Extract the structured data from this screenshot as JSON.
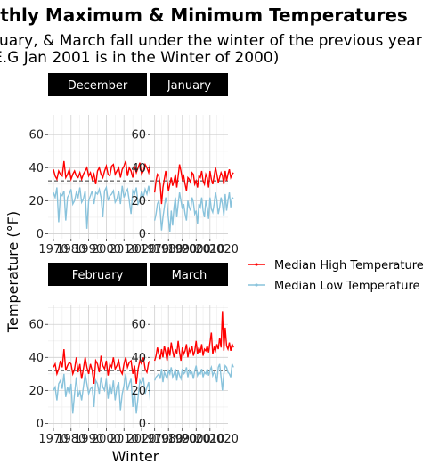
{
  "chart_data": {
    "type": "line",
    "title": "nthly Maximum & Minimum Temperatures",
    "subtitle_lines": [
      "ruary, & March fall under the winter of the previous year",
      "E.G Jan 2001 is in the Winter of 2000)"
    ],
    "xlabel": "Winter",
    "ylabel": "Temperature (°F)",
    "ylim": [
      -3,
      72
    ],
    "yticks": [
      "0",
      "20",
      "40",
      "60"
    ],
    "xticks": [
      "1970",
      "1980",
      "1990",
      "2000",
      "2010",
      "2020"
    ],
    "xlim": [
      1967,
      2023
    ],
    "reference_line": 32,
    "grid": true,
    "legend_position": "right",
    "series_colors": {
      "high": "#ff0000",
      "low": "#89c3dc"
    },
    "legend": [
      "Median High Temperature",
      "Median Low Temperature"
    ],
    "panels": [
      {
        "name": "December",
        "high": [
          39,
          35,
          33,
          38,
          36,
          35,
          44,
          34,
          36,
          39,
          33,
          36,
          38,
          35,
          34,
          37,
          33,
          36,
          38,
          40,
          35,
          37,
          33,
          36,
          30,
          38,
          40,
          36,
          34,
          38,
          41,
          36,
          35,
          41,
          42,
          36,
          38,
          40,
          34,
          39,
          41,
          44,
          35,
          40,
          38,
          34,
          41,
          37,
          40,
          43,
          36,
          38,
          42,
          40,
          37,
          43,
          44,
          40
        ],
        "low": [
          25,
          22,
          28,
          7,
          24,
          23,
          26,
          8,
          22,
          24,
          27,
          18,
          20,
          25,
          22,
          28,
          19,
          21,
          26,
          3,
          20,
          23,
          26,
          18,
          25,
          24,
          27,
          22,
          10,
          26,
          28,
          20,
          23,
          24,
          26,
          19,
          21,
          26,
          18,
          29,
          22,
          25,
          27,
          20,
          12,
          26,
          24,
          28,
          18,
          20,
          26,
          22,
          27,
          24,
          29,
          23,
          28,
          30
        ]
      },
      {
        "name": "January",
        "high": [
          25,
          32,
          36,
          35,
          30,
          18,
          28,
          33,
          38,
          32,
          26,
          30,
          34,
          29,
          32,
          36,
          28,
          35,
          42,
          38,
          33,
          35,
          30,
          26,
          34,
          33,
          31,
          37,
          36,
          30,
          32,
          28,
          35,
          34,
          38,
          32,
          30,
          36,
          34,
          28,
          38,
          33,
          30,
          35,
          40,
          36,
          31,
          34,
          37,
          35,
          30,
          38,
          32,
          36,
          39,
          34,
          36,
          37
        ],
        "low": [
          8,
          12,
          18,
          20,
          14,
          2,
          10,
          16,
          22,
          18,
          9,
          1,
          14,
          5,
          16,
          22,
          10,
          18,
          25,
          20,
          15,
          18,
          12,
          8,
          20,
          16,
          14,
          22,
          19,
          12,
          14,
          6,
          18,
          16,
          22,
          14,
          10,
          20,
          16,
          9,
          22,
          15,
          13,
          18,
          25,
          20,
          12,
          16,
          22,
          18,
          11,
          24,
          14,
          20,
          25,
          16,
          22,
          21
        ]
      },
      {
        "name": "February",
        "high": [
          34,
          36,
          30,
          33,
          38,
          34,
          45,
          32,
          35,
          37,
          36,
          30,
          33,
          40,
          31,
          36,
          27,
          33,
          40,
          34,
          30,
          36,
          32,
          24,
          38,
          36,
          31,
          41,
          35,
          33,
          38,
          29,
          36,
          34,
          40,
          33,
          35,
          38,
          32,
          30,
          36,
          40,
          34,
          37,
          38,
          30,
          35,
          24,
          33,
          38,
          36,
          40,
          33,
          31,
          37,
          38,
          44,
          47
        ],
        "low": [
          20,
          22,
          14,
          24,
          26,
          21,
          30,
          16,
          22,
          18,
          24,
          6,
          18,
          28,
          16,
          20,
          14,
          22,
          30,
          24,
          18,
          21,
          22,
          10,
          26,
          24,
          18,
          28,
          22,
          20,
          27,
          15,
          24,
          18,
          26,
          14,
          22,
          25,
          8,
          18,
          23,
          30,
          20,
          24,
          27,
          10,
          20,
          6,
          16,
          26,
          24,
          28,
          18,
          22,
          25,
          12,
          32,
          28
        ]
      },
      {
        "name": "March",
        "high": [
          38,
          41,
          46,
          42,
          39,
          45,
          40,
          47,
          43,
          38,
          46,
          41,
          49,
          44,
          40,
          45,
          42,
          50,
          43,
          38,
          46,
          42,
          44,
          48,
          40,
          45,
          43,
          47,
          41,
          44,
          50,
          42,
          46,
          43,
          48,
          41,
          45,
          44,
          47,
          43,
          49,
          55,
          42,
          46,
          44,
          48,
          45,
          52,
          46,
          68,
          44,
          58,
          47,
          45,
          49,
          44,
          48,
          46
        ],
        "low": [
          26,
          28,
          29,
          30,
          27,
          33,
          25,
          31,
          29,
          27,
          32,
          30,
          34,
          28,
          30,
          33,
          26,
          32,
          29,
          27,
          33,
          30,
          31,
          34,
          28,
          32,
          30,
          31,
          27,
          32,
          35,
          29,
          31,
          30,
          33,
          28,
          31,
          30,
          33,
          29,
          32,
          34,
          29,
          31,
          30,
          25,
          34,
          36,
          28,
          20,
          30,
          35,
          34,
          31,
          30,
          28,
          36,
          34
        ]
      }
    ]
  }
}
